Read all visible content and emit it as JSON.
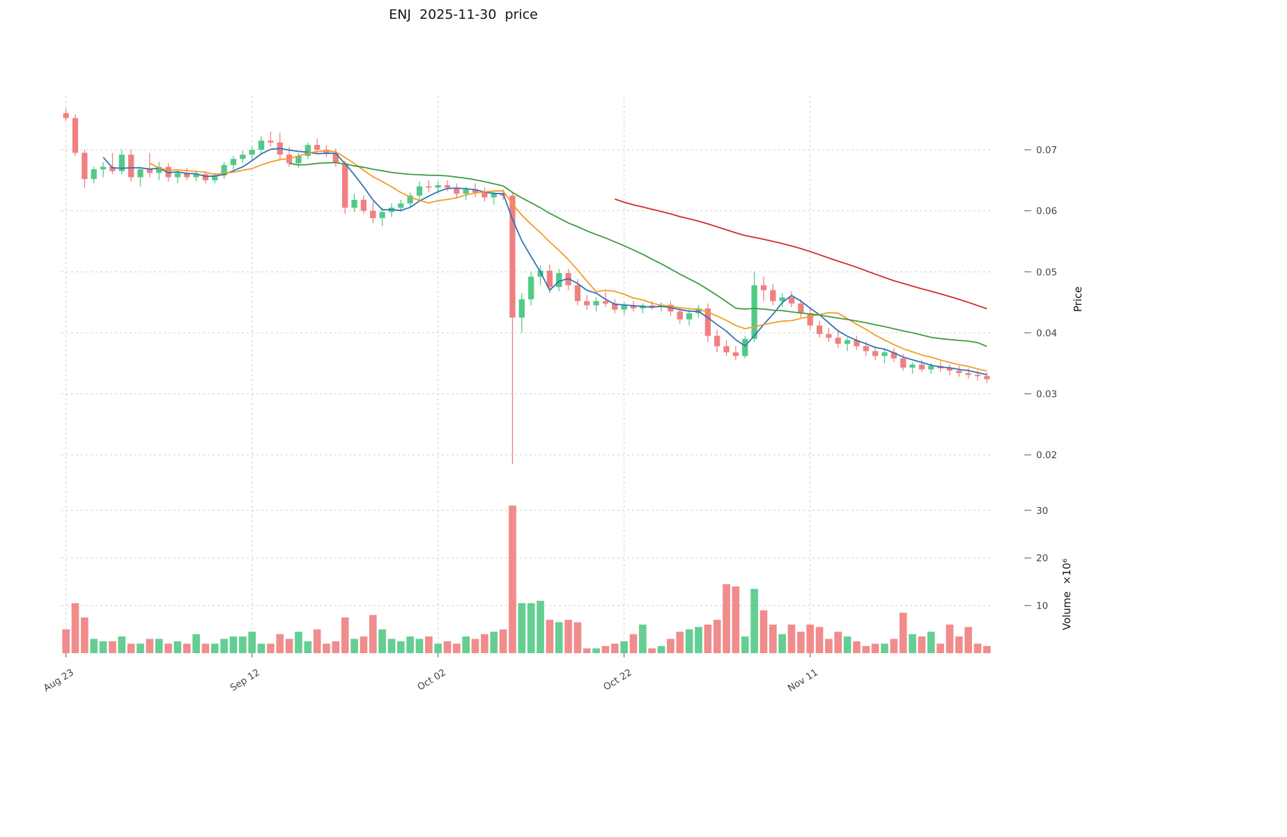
{
  "chart_data": {
    "type": "candlestick",
    "title": "ENJ  2025-11-30  price",
    "ylabel_price": "Price",
    "ylabel_volume": "Volume  ×10⁶",
    "legend_position": "none",
    "grid": true,
    "price_axis": {
      "labels": [
        "0.07",
        "0.06",
        "0.05",
        "0.04",
        "0.03",
        "0.02"
      ],
      "values": [
        0.07,
        0.06,
        0.05,
        0.04,
        0.03,
        0.02
      ],
      "range": [
        0.0158,
        0.0788
      ]
    },
    "volume_axis": {
      "labels": [
        "30",
        "20",
        "10"
      ],
      "values": [
        30,
        20,
        10
      ],
      "unit_multiplier": 1000000,
      "range": [
        0,
        34.8
      ]
    },
    "x_axis": {
      "labels": [
        "Aug 23",
        "Sep 12",
        "Oct 02",
        "Oct 22",
        "Nov 11"
      ],
      "indices": [
        0,
        20,
        40,
        60,
        80
      ]
    },
    "moving_averages": [
      {
        "name": "MA5",
        "window": 5,
        "color": "#2f72b4"
      },
      {
        "name": "MA10",
        "window": 10,
        "color": "#f59a23"
      },
      {
        "name": "MA25",
        "window": 25,
        "color": "#3d9c3d"
      },
      {
        "name": "MA60",
        "window": 60,
        "color": "#d62728"
      }
    ],
    "colors": {
      "up": "#53c987",
      "down": "#f08080",
      "grid": "#cdcdcd",
      "tick_text": "#444444",
      "title_text": "#141414"
    },
    "candles": {
      "dates": [
        "2025-08-23",
        "2025-08-24",
        "2025-08-25",
        "2025-08-26",
        "2025-08-27",
        "2025-08-28",
        "2025-08-29",
        "2025-08-30",
        "2025-08-31",
        "2025-09-01",
        "2025-09-02",
        "2025-09-03",
        "2025-09-04",
        "2025-09-05",
        "2025-09-06",
        "2025-09-07",
        "2025-09-08",
        "2025-09-09",
        "2025-09-10",
        "2025-09-11",
        "2025-09-12",
        "2025-09-13",
        "2025-09-14",
        "2025-09-15",
        "2025-09-16",
        "2025-09-17",
        "2025-09-18",
        "2025-09-19",
        "2025-09-20",
        "2025-09-21",
        "2025-09-22",
        "2025-09-23",
        "2025-09-24",
        "2025-09-25",
        "2025-09-26",
        "2025-09-27",
        "2025-09-28",
        "2025-09-29",
        "2025-09-30",
        "2025-10-01",
        "2025-10-02",
        "2025-10-03",
        "2025-10-04",
        "2025-10-05",
        "2025-10-06",
        "2025-10-07",
        "2025-10-08",
        "2025-10-09",
        "2025-10-10",
        "2025-10-11",
        "2025-10-12",
        "2025-10-13",
        "2025-10-14",
        "2025-10-15",
        "2025-10-16",
        "2025-10-17",
        "2025-10-18",
        "2025-10-19",
        "2025-10-20",
        "2025-10-21",
        "2025-10-22",
        "2025-10-23",
        "2025-10-24",
        "2025-10-25",
        "2025-10-26",
        "2025-10-27",
        "2025-10-28",
        "2025-10-29",
        "2025-10-30",
        "2025-10-31",
        "2025-11-01",
        "2025-11-02",
        "2025-11-03",
        "2025-11-04",
        "2025-11-05",
        "2025-11-06",
        "2025-11-07",
        "2025-11-08",
        "2025-11-09",
        "2025-11-10",
        "2025-11-11",
        "2025-11-12",
        "2025-11-13",
        "2025-11-14",
        "2025-11-15",
        "2025-11-16",
        "2025-11-17",
        "2025-11-18",
        "2025-11-19",
        "2025-11-20",
        "2025-11-21",
        "2025-11-22",
        "2025-11-23",
        "2025-11-24",
        "2025-11-25",
        "2025-11-26",
        "2025-11-27",
        "2025-11-28",
        "2025-11-29",
        "2025-11-30"
      ],
      "open": [
        0.076,
        0.0752,
        0.0695,
        0.0652,
        0.0668,
        0.0672,
        0.0665,
        0.0692,
        0.0655,
        0.0668,
        0.0662,
        0.0672,
        0.0655,
        0.0662,
        0.0655,
        0.066,
        0.065,
        0.0658,
        0.0675,
        0.0685,
        0.0692,
        0.07,
        0.0715,
        0.0712,
        0.0692,
        0.0678,
        0.069,
        0.0708,
        0.07,
        0.0695,
        0.0678,
        0.0605,
        0.0618,
        0.06,
        0.0588,
        0.0598,
        0.0605,
        0.0612,
        0.0625,
        0.064,
        0.0638,
        0.0642,
        0.0638,
        0.0628,
        0.0635,
        0.063,
        0.0622,
        0.0628,
        0.0625,
        0.0425,
        0.0455,
        0.0492,
        0.0502,
        0.0475,
        0.0498,
        0.0478,
        0.0452,
        0.0445,
        0.0452,
        0.0448,
        0.0438,
        0.0445,
        0.044,
        0.0445,
        0.0442,
        0.0446,
        0.0435,
        0.0422,
        0.0432,
        0.044,
        0.0395,
        0.0378,
        0.0368,
        0.0362,
        0.039,
        0.0478,
        0.047,
        0.0452,
        0.0458,
        0.0448,
        0.0432,
        0.0412,
        0.0398,
        0.0392,
        0.0382,
        0.0388,
        0.0378,
        0.037,
        0.0362,
        0.0368,
        0.0358,
        0.0343,
        0.0348,
        0.034,
        0.0346,
        0.0342,
        0.0338,
        0.0334,
        0.0331,
        0.0329
      ],
      "high": [
        0.0768,
        0.0758,
        0.07,
        0.0672,
        0.068,
        0.0695,
        0.07,
        0.07,
        0.0672,
        0.0695,
        0.068,
        0.0678,
        0.0668,
        0.067,
        0.0665,
        0.0665,
        0.0662,
        0.068,
        0.069,
        0.0698,
        0.0705,
        0.0722,
        0.073,
        0.0728,
        0.0705,
        0.0695,
        0.0712,
        0.0718,
        0.0708,
        0.0702,
        0.0682,
        0.0628,
        0.0625,
        0.0615,
        0.0605,
        0.0612,
        0.0618,
        0.063,
        0.0648,
        0.065,
        0.0648,
        0.065,
        0.0645,
        0.064,
        0.0645,
        0.0638,
        0.0632,
        0.0635,
        0.063,
        0.0465,
        0.05,
        0.051,
        0.0512,
        0.0505,
        0.0505,
        0.0488,
        0.0462,
        0.0458,
        0.0468,
        0.0455,
        0.045,
        0.0452,
        0.0448,
        0.0452,
        0.045,
        0.0452,
        0.0442,
        0.0438,
        0.0445,
        0.0448,
        0.0405,
        0.0388,
        0.0378,
        0.0395,
        0.05,
        0.0492,
        0.048,
        0.0465,
        0.0468,
        0.0455,
        0.044,
        0.042,
        0.0408,
        0.0402,
        0.0392,
        0.0395,
        0.0385,
        0.0378,
        0.0372,
        0.0375,
        0.0365,
        0.0352,
        0.0356,
        0.035,
        0.0353,
        0.0348,
        0.0346,
        0.0342,
        0.0338,
        0.0335
      ],
      "low": [
        0.0748,
        0.069,
        0.0638,
        0.0645,
        0.0655,
        0.066,
        0.066,
        0.0648,
        0.064,
        0.0655,
        0.065,
        0.0648,
        0.0645,
        0.065,
        0.0648,
        0.0645,
        0.0645,
        0.0652,
        0.0668,
        0.0678,
        0.0682,
        0.0692,
        0.0705,
        0.0685,
        0.0672,
        0.067,
        0.0685,
        0.0695,
        0.0688,
        0.0672,
        0.0595,
        0.0598,
        0.0595,
        0.058,
        0.0575,
        0.059,
        0.0598,
        0.0605,
        0.0618,
        0.063,
        0.0628,
        0.0632,
        0.062,
        0.0618,
        0.0622,
        0.0615,
        0.061,
        0.0618,
        0.0185,
        0.04,
        0.0445,
        0.0478,
        0.0465,
        0.0468,
        0.047,
        0.0445,
        0.0438,
        0.0435,
        0.0442,
        0.0432,
        0.043,
        0.0435,
        0.0432,
        0.0438,
        0.0435,
        0.0428,
        0.0415,
        0.0412,
        0.0425,
        0.0385,
        0.0368,
        0.0362,
        0.0355,
        0.0358,
        0.0385,
        0.0452,
        0.0445,
        0.0442,
        0.0442,
        0.0425,
        0.0405,
        0.0392,
        0.0385,
        0.0375,
        0.037,
        0.0372,
        0.0362,
        0.0355,
        0.035,
        0.0352,
        0.0338,
        0.0333,
        0.0336,
        0.0333,
        0.0336,
        0.033,
        0.0328,
        0.0325,
        0.0322,
        0.0318
      ],
      "close": [
        0.0752,
        0.0695,
        0.0652,
        0.0668,
        0.0672,
        0.0665,
        0.0692,
        0.0655,
        0.0668,
        0.0662,
        0.0672,
        0.0655,
        0.0662,
        0.0655,
        0.066,
        0.065,
        0.0658,
        0.0675,
        0.0685,
        0.0692,
        0.07,
        0.0715,
        0.0712,
        0.0692,
        0.0678,
        0.069,
        0.0708,
        0.07,
        0.0695,
        0.0678,
        0.0605,
        0.0618,
        0.06,
        0.0588,
        0.0598,
        0.0605,
        0.0612,
        0.0625,
        0.064,
        0.0638,
        0.0642,
        0.0638,
        0.0628,
        0.0635,
        0.063,
        0.0622,
        0.0628,
        0.0625,
        0.0425,
        0.0455,
        0.0492,
        0.0502,
        0.0475,
        0.0498,
        0.0478,
        0.0452,
        0.0445,
        0.0452,
        0.0448,
        0.0438,
        0.0445,
        0.044,
        0.0445,
        0.0442,
        0.0446,
        0.0435,
        0.0422,
        0.0432,
        0.044,
        0.0395,
        0.0378,
        0.0368,
        0.0362,
        0.039,
        0.0478,
        0.047,
        0.0452,
        0.0458,
        0.0448,
        0.0432,
        0.0412,
        0.0398,
        0.0392,
        0.0382,
        0.0388,
        0.0378,
        0.037,
        0.0362,
        0.0368,
        0.0358,
        0.0343,
        0.0348,
        0.034,
        0.0346,
        0.0342,
        0.0338,
        0.0334,
        0.0331,
        0.0329,
        0.0324
      ],
      "volume_millions": [
        5.0,
        10.5,
        7.5,
        3.0,
        2.5,
        2.5,
        3.5,
        2.0,
        2.0,
        3.0,
        3.0,
        2.0,
        2.5,
        2.0,
        4.0,
        2.0,
        2.0,
        3.0,
        3.5,
        3.5,
        4.5,
        2.0,
        2.0,
        4.0,
        3.0,
        4.5,
        2.5,
        5.0,
        2.0,
        2.5,
        7.5,
        3.0,
        3.5,
        8.0,
        5.0,
        3.0,
        2.5,
        3.5,
        3.0,
        3.5,
        2.0,
        2.5,
        2.0,
        3.5,
        3.0,
        4.0,
        4.5,
        5.0,
        31.0,
        10.5,
        10.5,
        11.0,
        7.0,
        6.5,
        7.0,
        6.5,
        1.0,
        1.0,
        1.5,
        2.0,
        2.5,
        4.0,
        6.0,
        1.0,
        1.5,
        3.0,
        4.5,
        5.0,
        5.5,
        6.0,
        7.0,
        14.5,
        14.0,
        3.5,
        13.5,
        9.0,
        6.0,
        4.0,
        6.0,
        4.5,
        6.0,
        5.5,
        3.0,
        4.5,
        3.5,
        2.5,
        1.5,
        2.0,
        2.0,
        3.0,
        8.5,
        4.0,
        3.5,
        4.5,
        2.0,
        6.0,
        3.5,
        5.5,
        2.0,
        1.5
      ]
    }
  }
}
